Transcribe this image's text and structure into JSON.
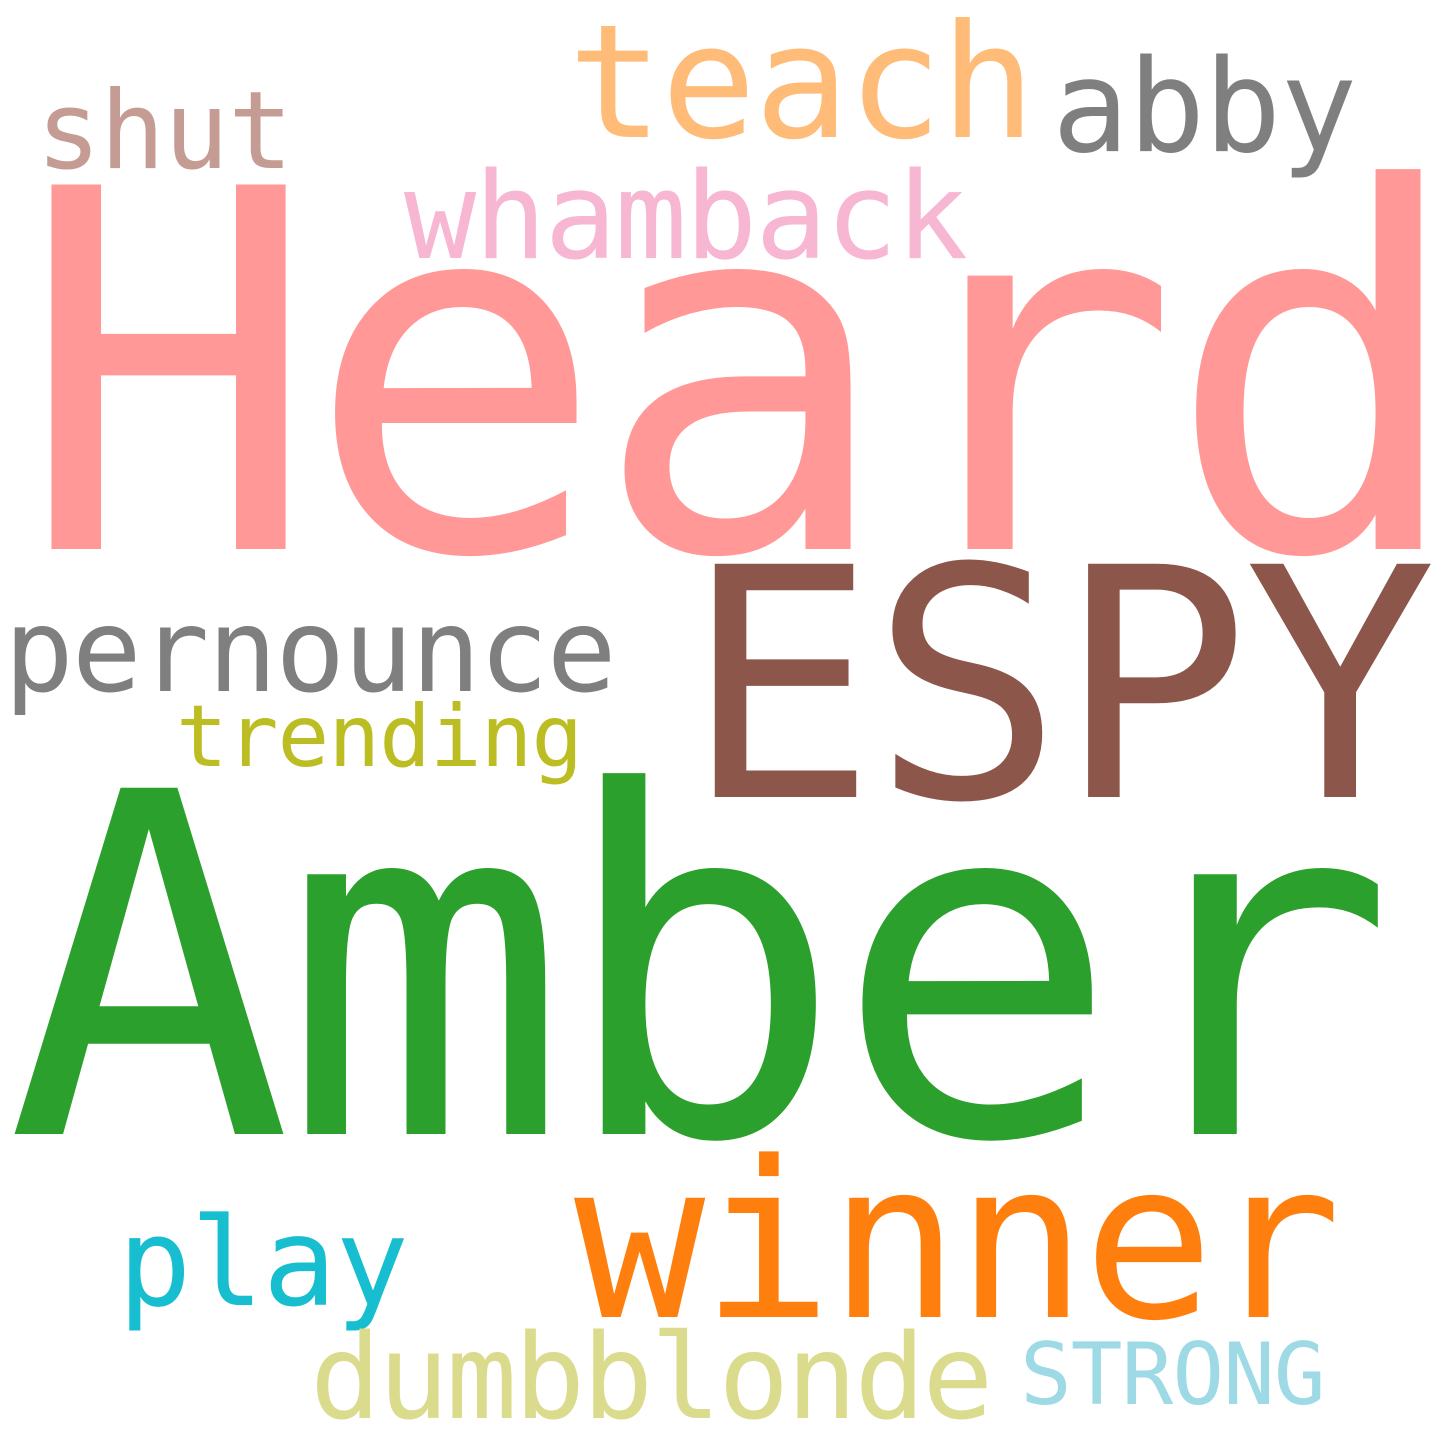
{
  "words": [
    {
      "id": "heard",
      "text": "Heard",
      "color": "#ff9896"
    },
    {
      "id": "amber",
      "text": "Amber",
      "color": "#2ca02c"
    },
    {
      "id": "espy",
      "text": "ESPY",
      "color": "#8c564b"
    },
    {
      "id": "winner",
      "text": "winner",
      "color": "#ff7f0e"
    },
    {
      "id": "teach",
      "text": "teach",
      "color": "#ffbb78"
    },
    {
      "id": "abby",
      "text": "abby",
      "color": "#7f7f7f"
    },
    {
      "id": "shut",
      "text": "shut",
      "color": "#c49c94"
    },
    {
      "id": "whamback",
      "text": "whamback",
      "color": "#f7b6d2"
    },
    {
      "id": "pernounce",
      "text": "pernounce",
      "color": "#7f7f7f"
    },
    {
      "id": "trending",
      "text": "trending",
      "color": "#bcbd22"
    },
    {
      "id": "play",
      "text": "play",
      "color": "#17becf"
    },
    {
      "id": "dumbblonde",
      "text": "dumbblonde",
      "color": "#dbdb8d"
    },
    {
      "id": "strong",
      "text": "STRONG",
      "color": "#9edae5"
    }
  ]
}
